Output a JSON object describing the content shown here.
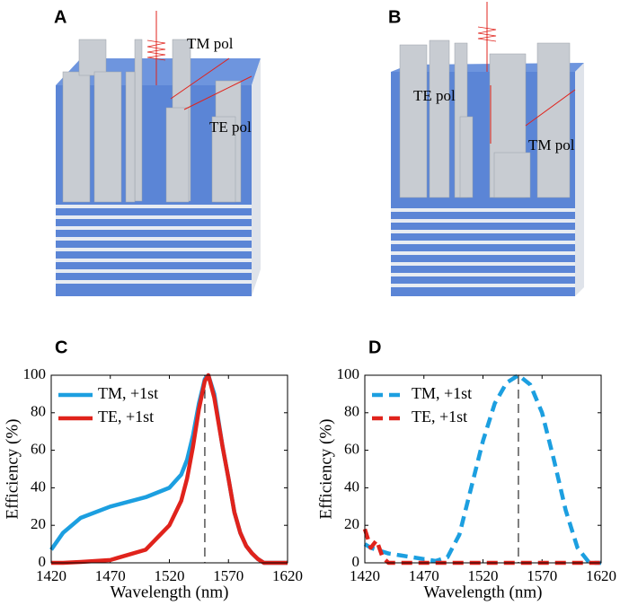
{
  "panels": {
    "A": {
      "label": "A",
      "texts": [
        "TM pol",
        "TE pol"
      ]
    },
    "B": {
      "label": "B",
      "texts": [
        "TE pol",
        "TM pol"
      ]
    }
  },
  "chart_data": [
    {
      "type": "line",
      "panel": "C",
      "xlabel": "Wavelength (nm)",
      "ylabel": "Efficiency (%)",
      "x": [
        1420,
        1430,
        1445,
        1470,
        1500,
        1520,
        1530,
        1535,
        1540,
        1545,
        1550,
        1553,
        1558,
        1565,
        1570,
        1575,
        1580,
        1585,
        1590,
        1595,
        1600,
        1620
      ],
      "series": [
        {
          "name": "TM, +1st",
          "color": "#1c9fe0",
          "linestyle": "solid",
          "values": [
            7,
            16,
            24,
            30,
            35,
            40,
            47,
            55,
            68,
            85,
            98,
            100,
            90,
            62,
            45,
            27,
            16,
            9,
            5,
            2,
            0,
            0
          ]
        },
        {
          "name": "TE, +1st",
          "color": "#e0231c",
          "linestyle": "solid",
          "values": [
            0,
            0,
            0.5,
            1.5,
            7,
            20,
            33,
            45,
            62,
            82,
            97,
            100,
            88,
            62,
            45,
            27,
            16,
            9,
            5,
            2,
            0,
            0
          ]
        }
      ],
      "xlim": [
        1420,
        1620
      ],
      "ylim": [
        0,
        100
      ],
      "xticks": [
        1420,
        1470,
        1520,
        1570,
        1620
      ],
      "yticks": [
        0,
        20,
        40,
        60,
        80,
        100
      ],
      "vline": 1550,
      "legend": "upper left",
      "grid": false
    },
    {
      "type": "line",
      "panel": "D",
      "xlabel": "Wavelength (nm)",
      "ylabel": "Efficiency (%)",
      "x": [
        1420,
        1425,
        1430,
        1435,
        1440,
        1450,
        1470,
        1480,
        1490,
        1500,
        1510,
        1520,
        1530,
        1540,
        1550,
        1560,
        1570,
        1580,
        1590,
        1600,
        1610,
        1620
      ],
      "series": [
        {
          "name": "TM, +1st",
          "color": "#1c9fe0",
          "linestyle": "dashed",
          "values": [
            10,
            8,
            7,
            6,
            5,
            4,
            2,
            1,
            3,
            15,
            40,
            65,
            85,
            96,
            100,
            95,
            80,
            55,
            28,
            8,
            0,
            0
          ]
        },
        {
          "name": "TE, +1st",
          "color": "#e0231c",
          "linestyle": "dashed",
          "values": [
            18,
            8,
            12,
            3,
            0,
            0,
            0,
            0,
            0,
            0,
            0,
            0,
            0,
            0,
            0,
            0,
            0,
            0,
            0,
            0,
            0,
            0
          ]
        }
      ],
      "xlim": [
        1420,
        1620
      ],
      "ylim": [
        0,
        100
      ],
      "xticks": [
        1420,
        1470,
        1520,
        1570,
        1620
      ],
      "yticks": [
        0,
        20,
        40,
        60,
        80,
        100
      ],
      "vline": 1550,
      "legend": "upper left",
      "grid": false
    }
  ]
}
